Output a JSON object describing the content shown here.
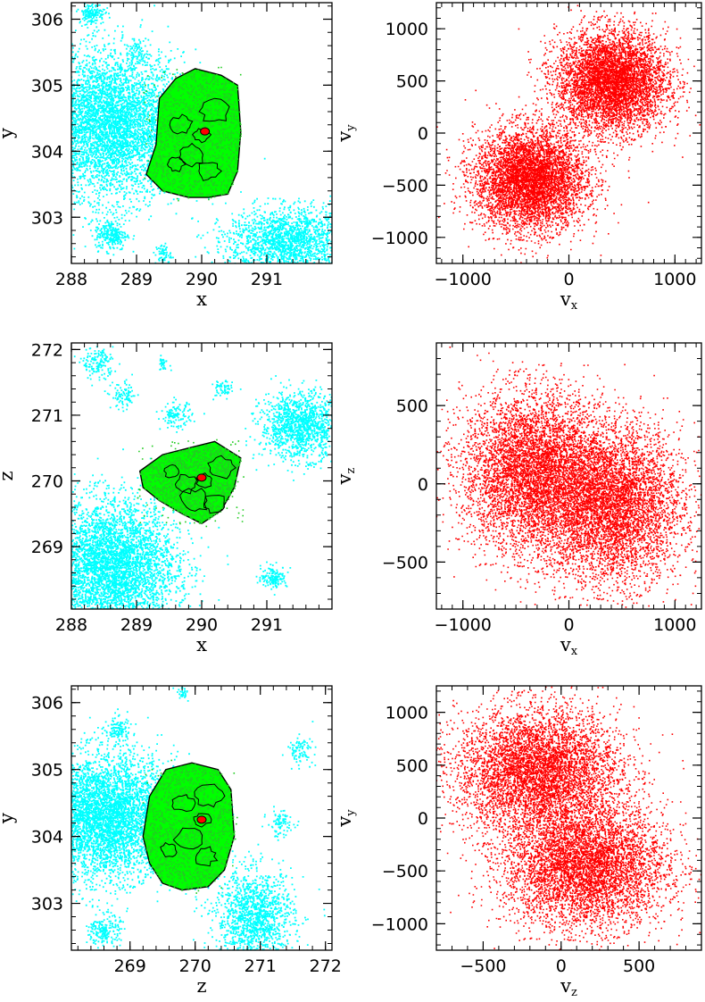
{
  "figure": {
    "layout": "3 rows x 2 columns"
  },
  "chart_data": [
    {
      "id": "xy-pos",
      "type": "scatter",
      "title": "",
      "xlabel": "x",
      "ylabel": "y",
      "xlim": [
        288,
        292
      ],
      "ylim": [
        302.3,
        306.25
      ],
      "xticks": [
        288,
        289,
        290,
        291
      ],
      "yticks": [
        303,
        304,
        305,
        306
      ],
      "xminor": 0.2,
      "yminor": 0.2,
      "colors": {
        "background_cluster": "#00ffff",
        "main_cluster": "#00ff00",
        "contours": "#000000",
        "peak": "#ff0000"
      },
      "background_clumps": [
        {
          "cx": 288.6,
          "cy": 304.4,
          "sx": 0.55,
          "sy": 0.55,
          "n": 5000
        },
        {
          "cx": 291.3,
          "cy": 302.65,
          "sx": 0.45,
          "sy": 0.25,
          "n": 1800
        },
        {
          "cx": 288.6,
          "cy": 302.75,
          "sx": 0.12,
          "sy": 0.12,
          "n": 250
        },
        {
          "cx": 288.3,
          "cy": 306.1,
          "sx": 0.1,
          "sy": 0.08,
          "n": 150
        },
        {
          "cx": 289.0,
          "cy": 305.5,
          "sx": 0.08,
          "sy": 0.08,
          "n": 60
        },
        {
          "cx": 289.4,
          "cy": 302.45,
          "sx": 0.06,
          "sy": 0.08,
          "n": 60
        }
      ],
      "main_cluster_shape": [
        [
          289.35,
          304.8
        ],
        [
          289.6,
          305.1
        ],
        [
          289.9,
          305.25
        ],
        [
          290.3,
          305.15
        ],
        [
          290.55,
          305.0
        ],
        [
          290.6,
          304.3
        ],
        [
          290.55,
          303.7
        ],
        [
          290.4,
          303.35
        ],
        [
          290.1,
          303.3
        ],
        [
          289.8,
          303.3
        ],
        [
          289.4,
          303.4
        ],
        [
          289.15,
          303.65
        ],
        [
          289.3,
          304.1
        ]
      ],
      "contour_centers": [
        [
          290.0,
          304.25
        ],
        [
          289.7,
          304.4
        ],
        [
          290.2,
          304.6
        ],
        [
          289.6,
          303.8
        ],
        [
          290.1,
          303.7
        ],
        [
          289.85,
          303.95
        ]
      ],
      "peak": [
        290.05,
        304.3
      ]
    },
    {
      "id": "vxvy-vel",
      "type": "scatter",
      "title": "",
      "xlabel": "v",
      "xlabel_sub": "x",
      "ylabel": "v",
      "ylabel_sub": "y",
      "xlim": [
        -1250,
        1250
      ],
      "ylim": [
        -1250,
        1250
      ],
      "xticks": [
        -1000,
        0,
        1000
      ],
      "yticks": [
        -1000,
        -500,
        0,
        500,
        1000
      ],
      "xtick_labels": [
        "−1000",
        "0",
        "1000"
      ],
      "ytick_labels": [
        "−1000",
        "−500",
        "0",
        "500",
        "1000"
      ],
      "xminor": 100,
      "yminor": 100,
      "colors": {
        "points": "#ff0000"
      },
      "clumps": [
        {
          "cx": 400,
          "cy": 500,
          "sx": 260,
          "sy": 240,
          "n": 5500
        },
        {
          "cx": -370,
          "cy": -440,
          "sx": 260,
          "sy": 240,
          "n": 5500
        }
      ]
    },
    {
      "id": "xz-pos",
      "type": "scatter",
      "title": "",
      "xlabel": "x",
      "ylabel": "z",
      "xlim": [
        288,
        292
      ],
      "ylim": [
        268.05,
        272.1
      ],
      "xticks": [
        288,
        289,
        290,
        291
      ],
      "yticks": [
        269,
        270,
        271,
        272
      ],
      "xminor": 0.2,
      "yminor": 0.2,
      "colors": {
        "background_cluster": "#00ffff",
        "main_cluster": "#00ff00",
        "contours": "#000000",
        "peak": "#ff0000"
      },
      "background_clumps": [
        {
          "cx": 288.6,
          "cy": 268.7,
          "sx": 0.5,
          "sy": 0.5,
          "n": 4500
        },
        {
          "cx": 291.5,
          "cy": 270.85,
          "sx": 0.3,
          "sy": 0.25,
          "n": 1300
        },
        {
          "cx": 291.1,
          "cy": 268.55,
          "sx": 0.1,
          "sy": 0.08,
          "n": 150
        },
        {
          "cx": 288.4,
          "cy": 271.8,
          "sx": 0.12,
          "sy": 0.12,
          "n": 150
        },
        {
          "cx": 289.6,
          "cy": 271.0,
          "sx": 0.12,
          "sy": 0.1,
          "n": 120
        },
        {
          "cx": 288.8,
          "cy": 271.3,
          "sx": 0.1,
          "sy": 0.1,
          "n": 90
        },
        {
          "cx": 290.3,
          "cy": 271.4,
          "sx": 0.08,
          "sy": 0.08,
          "n": 60
        },
        {
          "cx": 289.4,
          "cy": 271.8,
          "sx": 0.05,
          "sy": 0.05,
          "n": 30
        }
      ],
      "main_cluster_shape": [
        [
          289.05,
          270.15
        ],
        [
          289.4,
          270.4
        ],
        [
          289.8,
          270.5
        ],
        [
          290.2,
          270.6
        ],
        [
          290.6,
          270.35
        ],
        [
          290.5,
          269.9
        ],
        [
          290.3,
          269.55
        ],
        [
          290.0,
          269.35
        ],
        [
          289.7,
          269.5
        ],
        [
          289.35,
          269.7
        ],
        [
          289.1,
          269.9
        ]
      ],
      "contour_centers": [
        [
          290.05,
          270.0
        ],
        [
          289.75,
          269.95
        ],
        [
          290.3,
          270.2
        ],
        [
          289.55,
          270.15
        ],
        [
          290.2,
          269.65
        ],
        [
          289.9,
          269.7
        ]
      ],
      "peak": [
        290.0,
        270.05
      ]
    },
    {
      "id": "vxvz-vel",
      "type": "scatter",
      "title": "",
      "xlabel": "v",
      "xlabel_sub": "x",
      "ylabel": "v",
      "ylabel_sub": "z",
      "xlim": [
        -1250,
        1250
      ],
      "ylim": [
        -800,
        900
      ],
      "xticks": [
        -1000,
        0,
        1000
      ],
      "yticks": [
        -500,
        0,
        500
      ],
      "xtick_labels": [
        "−1000",
        "0",
        "1000"
      ],
      "ytick_labels": [
        "−500",
        "0",
        "500"
      ],
      "xminor": 100,
      "yminor": 100,
      "colors": {
        "points": "#ff0000"
      },
      "clumps": [
        {
          "cx": -350,
          "cy": 80,
          "sx": 330,
          "sy": 250,
          "n": 5500
        },
        {
          "cx": 400,
          "cy": -130,
          "sx": 330,
          "sy": 250,
          "n": 5500
        }
      ]
    },
    {
      "id": "zy-pos",
      "type": "scatter",
      "title": "",
      "xlabel": "z",
      "ylabel": "y",
      "xlim": [
        268.1,
        272.1
      ],
      "ylim": [
        302.3,
        306.25
      ],
      "xticks": [
        269,
        270,
        271,
        272
      ],
      "yticks": [
        303,
        304,
        305,
        306
      ],
      "xminor": 0.2,
      "yminor": 0.2,
      "colors": {
        "background_cluster": "#00ffff",
        "main_cluster": "#00ff00",
        "contours": "#000000",
        "peak": "#ff0000"
      },
      "background_clumps": [
        {
          "cx": 268.6,
          "cy": 304.3,
          "sx": 0.55,
          "sy": 0.45,
          "n": 5000
        },
        {
          "cx": 270.9,
          "cy": 302.8,
          "sx": 0.3,
          "sy": 0.35,
          "n": 1400
        },
        {
          "cx": 268.6,
          "cy": 302.6,
          "sx": 0.12,
          "sy": 0.12,
          "n": 200
        },
        {
          "cx": 268.8,
          "cy": 305.6,
          "sx": 0.1,
          "sy": 0.1,
          "n": 120
        },
        {
          "cx": 271.6,
          "cy": 305.3,
          "sx": 0.1,
          "sy": 0.1,
          "n": 90
        },
        {
          "cx": 271.3,
          "cy": 304.2,
          "sx": 0.1,
          "sy": 0.1,
          "n": 90
        },
        {
          "cx": 269.8,
          "cy": 306.15,
          "sx": 0.05,
          "sy": 0.05,
          "n": 30
        }
      ],
      "main_cluster_shape": [
        [
          269.3,
          304.6
        ],
        [
          269.55,
          305.0
        ],
        [
          269.95,
          305.1
        ],
        [
          270.35,
          305.0
        ],
        [
          270.55,
          304.7
        ],
        [
          270.6,
          304.0
        ],
        [
          270.45,
          303.5
        ],
        [
          270.2,
          303.25
        ],
        [
          269.8,
          303.2
        ],
        [
          269.5,
          303.3
        ],
        [
          269.3,
          303.6
        ],
        [
          269.2,
          304.0
        ]
      ],
      "contour_centers": [
        [
          270.1,
          304.25
        ],
        [
          269.8,
          304.5
        ],
        [
          270.2,
          304.6
        ],
        [
          269.6,
          303.8
        ],
        [
          270.15,
          303.7
        ],
        [
          269.9,
          303.95
        ]
      ],
      "peak": [
        270.1,
        304.25
      ]
    },
    {
      "id": "vzvy-vel",
      "type": "scatter",
      "title": "",
      "xlabel": "v",
      "xlabel_sub": "z",
      "ylabel": "v",
      "ylabel_sub": "y",
      "xlim": [
        -800,
        900
      ],
      "ylim": [
        -1250,
        1250
      ],
      "xticks": [
        -500,
        0,
        500
      ],
      "yticks": [
        -1000,
        -500,
        0,
        500,
        1000
      ],
      "xtick_labels": [
        "−500",
        "0",
        "500"
      ],
      "ytick_labels": [
        "−1000",
        "−500",
        "0",
        "500",
        "1000"
      ],
      "xminor": 100,
      "yminor": 100,
      "colors": {
        "points": "#ff0000"
      },
      "clumps": [
        {
          "cx": -150,
          "cy": 450,
          "sx": 260,
          "sy": 290,
          "n": 5500
        },
        {
          "cx": 150,
          "cy": -450,
          "sx": 260,
          "sy": 290,
          "n": 5500
        }
      ]
    }
  ]
}
